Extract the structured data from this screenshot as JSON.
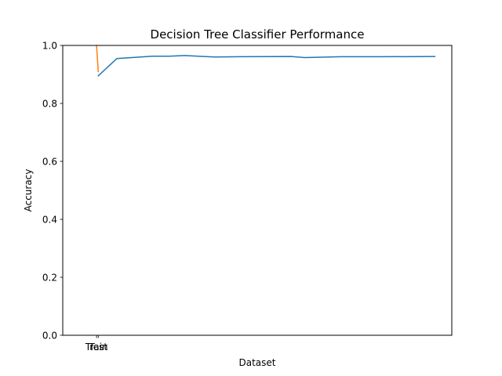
{
  "chart_data": {
    "type": "line",
    "title": "Decision Tree Classifier Performance",
    "xlabel": "Dataset",
    "ylabel": "Accuracy",
    "ylim": [
      0,
      1.0
    ],
    "xlim": [
      -0.02,
      0.21
    ],
    "yticks": [
      "0.0",
      "0.2",
      "0.4",
      "0.6",
      "0.8",
      "1.0"
    ],
    "xticks": [
      {
        "value": 0,
        "label": "Train"
      },
      {
        "value": 0.001,
        "label": "Test"
      }
    ],
    "grid": false,
    "series": [
      {
        "color": "#1f77b4",
        "x": [
          0.001,
          0.012,
          0.033,
          0.043,
          0.052,
          0.07,
          0.085,
          0.115,
          0.123,
          0.145,
          0.17,
          0.2
        ],
        "y": [
          0.895,
          0.955,
          0.963,
          0.963,
          0.965,
          0.96,
          0.961,
          0.962,
          0.958,
          0.961,
          0.961,
          0.962
        ]
      },
      {
        "color": "#ff7f0e",
        "x": [
          0,
          0.001
        ],
        "y": [
          1.0,
          0.91
        ]
      }
    ]
  }
}
